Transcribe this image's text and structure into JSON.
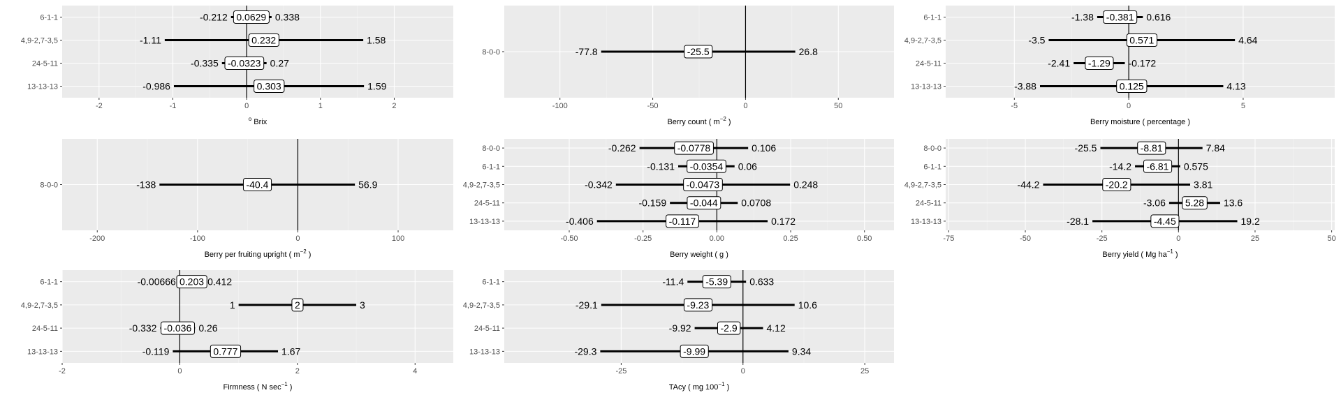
{
  "chart_data": [
    {
      "type": "forest",
      "title": "",
      "xlabel": {
        "pre": "",
        "sup": "o",
        "post": " Brix",
        "sup_first": true
      },
      "xlim": [
        -2.5,
        2.8
      ],
      "xticks": [
        -2,
        -1,
        0,
        1,
        2
      ],
      "xtick_labels": [
        "-2",
        "-1",
        "0",
        "1",
        "2"
      ],
      "categories": [
        "6-1-1",
        "4,9-2,7-3,5",
        "24-5-11",
        "13-13-13"
      ],
      "rows": [
        {
          "category": "6-1-1",
          "low": -0.212,
          "estimate": 0.0629,
          "high": 0.338,
          "low_label": "-0.212",
          "estimate_label": "0.0629",
          "high_label": "0.338"
        },
        {
          "category": "4,9-2,7-3,5",
          "low": -1.11,
          "estimate": 0.232,
          "high": 1.58,
          "low_label": "-1.11",
          "estimate_label": "0.232",
          "high_label": "1.58"
        },
        {
          "category": "24-5-11",
          "low": -0.335,
          "estimate": -0.0323,
          "high": 0.27,
          "low_label": "-0.335",
          "estimate_label": "-0.0323",
          "high_label": "0.27"
        },
        {
          "category": "13-13-13",
          "low": -0.986,
          "estimate": 0.303,
          "high": 1.59,
          "low_label": "-0.986",
          "estimate_label": "0.303",
          "high_label": "1.59"
        }
      ]
    },
    {
      "type": "forest",
      "title": "",
      "xlabel": {
        "pre": "Berry count  ( m",
        "sup": "−2",
        "post": " )"
      },
      "xlim": [
        -130,
        80
      ],
      "xticks": [
        -100,
        -50,
        0,
        50
      ],
      "xtick_labels": [
        "-100",
        "-50",
        "0",
        "50"
      ],
      "categories": [
        "8-0-0"
      ],
      "rows": [
        {
          "category": "8-0-0",
          "low": -77.8,
          "estimate": -25.5,
          "high": 26.8,
          "low_label": "-77.8",
          "estimate_label": "-25.5",
          "high_label": "26.8"
        }
      ]
    },
    {
      "type": "forest",
      "title": "",
      "xlabel": {
        "pre": "Berry moisture  ( percentage  )",
        "sup": "",
        "post": ""
      },
      "xlim": [
        -8,
        9
      ],
      "xticks": [
        -5,
        0,
        5
      ],
      "xtick_labels": [
        "-5",
        "0",
        "5"
      ],
      "categories": [
        "6-1-1",
        "4,9-2,7-3,5",
        "24-5-11",
        "13-13-13"
      ],
      "rows": [
        {
          "category": "6-1-1",
          "low": -1.38,
          "estimate": -0.381,
          "high": 0.616,
          "low_label": "-1.38",
          "estimate_label": "-0.381",
          "high_label": "0.616"
        },
        {
          "category": "4,9-2,7-3,5",
          "low": -3.5,
          "estimate": 0.571,
          "high": 4.64,
          "low_label": "-3.5",
          "estimate_label": "0.571",
          "high_label": "4.64"
        },
        {
          "category": "24-5-11",
          "low": -2.41,
          "estimate": -1.29,
          "high": -0.172,
          "low_label": "-2.41",
          "estimate_label": "-1.29",
          "high_label": "-0.172"
        },
        {
          "category": "13-13-13",
          "low": -3.88,
          "estimate": 0.125,
          "high": 4.13,
          "low_label": "-3.88",
          "estimate_label": "0.125",
          "high_label": "4.13"
        }
      ]
    },
    {
      "type": "forest",
      "title": "",
      "xlabel": {
        "pre": "Berry per fruiting upright  ( m",
        "sup": "−2",
        "post": " )"
      },
      "xlim": [
        -235,
        155
      ],
      "xticks": [
        -200,
        -100,
        0,
        100
      ],
      "xtick_labels": [
        "-200",
        "-100",
        "0",
        "100"
      ],
      "categories": [
        "8-0-0"
      ],
      "rows": [
        {
          "category": "8-0-0",
          "low": -138,
          "estimate": -40.4,
          "high": 56.9,
          "low_label": "-138",
          "estimate_label": "-40.4",
          "high_label": "56.9"
        }
      ]
    },
    {
      "type": "forest",
      "title": "",
      "xlabel": {
        "pre": "Berry weight  ( g  )",
        "sup": "",
        "post": ""
      },
      "xlim": [
        -0.72,
        0.6
      ],
      "xticks": [
        -0.5,
        -0.25,
        0,
        0.25,
        0.5
      ],
      "xtick_labels": [
        "-0.50",
        "-0.25",
        "0.00",
        "0.25",
        "0.50"
      ],
      "categories": [
        "8-0-0",
        "6-1-1",
        "4,9-2,7-3,5",
        "24-5-11",
        "13-13-13"
      ],
      "rows": [
        {
          "category": "8-0-0",
          "low": -0.262,
          "estimate": -0.0778,
          "high": 0.106,
          "low_label": "-0.262",
          "estimate_label": "-0.0778",
          "high_label": "0.106"
        },
        {
          "category": "6-1-1",
          "low": -0.131,
          "estimate": -0.0354,
          "high": 0.06,
          "low_label": "-0.131",
          "estimate_label": "-0.0354",
          "high_label": "0.06"
        },
        {
          "category": "4,9-2,7-3,5",
          "low": -0.342,
          "estimate": -0.0473,
          "high": 0.248,
          "low_label": "-0.342",
          "estimate_label": "-0.0473",
          "high_label": "0.248"
        },
        {
          "category": "24-5-11",
          "low": -0.159,
          "estimate": -0.044,
          "high": 0.0708,
          "low_label": "-0.159",
          "estimate_label": "-0.044",
          "high_label": "0.0708"
        },
        {
          "category": "13-13-13",
          "low": -0.406,
          "estimate": -0.117,
          "high": 0.172,
          "low_label": "-0.406",
          "estimate_label": "-0.117",
          "high_label": "0.172"
        }
      ]
    },
    {
      "type": "forest",
      "title": "",
      "xlabel": {
        "pre": "Berry yield  ( Mg ha",
        "sup": "−1",
        "post": " )"
      },
      "xlim": [
        -76,
        51
      ],
      "xticks": [
        -75,
        -50,
        -25,
        0,
        25,
        50
      ],
      "xtick_labels": [
        "-75",
        "-50",
        "-25",
        "0",
        "25",
        "50"
      ],
      "categories": [
        "8-0-0",
        "6-1-1",
        "4,9-2,7-3,5",
        "24-5-11",
        "13-13-13"
      ],
      "rows": [
        {
          "category": "8-0-0",
          "low": -25.5,
          "estimate": -8.81,
          "high": 7.84,
          "low_label": "-25.5",
          "estimate_label": "-8.81",
          "high_label": "7.84"
        },
        {
          "category": "6-1-1",
          "low": -14.2,
          "estimate": -6.81,
          "high": 0.575,
          "low_label": "-14.2",
          "estimate_label": "-6.81",
          "high_label": "0.575"
        },
        {
          "category": "4,9-2,7-3,5",
          "low": -44.2,
          "estimate": -20.2,
          "high": 3.81,
          "low_label": "-44.2",
          "estimate_label": "-20.2",
          "high_label": "3.81"
        },
        {
          "category": "24-5-11",
          "low": -3.06,
          "estimate": 5.28,
          "high": 13.6,
          "low_label": "-3.06",
          "estimate_label": "5.28",
          "high_label": "13.6"
        },
        {
          "category": "13-13-13",
          "low": -28.1,
          "estimate": -4.45,
          "high": 19.2,
          "low_label": "-28.1",
          "estimate_label": "-4.45",
          "high_label": "19.2"
        }
      ]
    },
    {
      "type": "forest",
      "title": "",
      "xlabel": {
        "pre": "Firmness  ( N sec",
        "sup": "−1",
        "post": " )"
      },
      "xlim": [
        -2,
        4.65
      ],
      "xticks": [
        -2,
        0,
        2,
        4
      ],
      "xtick_labels": [
        "-2",
        "0",
        "2",
        "4"
      ],
      "categories": [
        "6-1-1",
        "4,9-2,7-3,5",
        "24-5-11",
        "13-13-13"
      ],
      "rows": [
        {
          "category": "6-1-1",
          "low": -0.00666,
          "estimate": 0.203,
          "high": 0.412,
          "low_label": "-0.00666",
          "estimate_label": "0.203",
          "high_label": "0.412"
        },
        {
          "category": "4,9-2,7-3,5",
          "low": 1,
          "estimate": 2,
          "high": 3,
          "low_label": "1",
          "estimate_label": "2",
          "high_label": "3"
        },
        {
          "category": "24-5-11",
          "low": -0.332,
          "estimate": -0.036,
          "high": 0.26,
          "low_label": "-0.332",
          "estimate_label": "-0.036",
          "high_label": "0.26"
        },
        {
          "category": "13-13-13",
          "low": -0.119,
          "estimate": 0.777,
          "high": 1.67,
          "low_label": "-0.119",
          "estimate_label": "0.777",
          "high_label": "1.67"
        }
      ]
    },
    {
      "type": "forest",
      "title": "",
      "xlabel": {
        "pre": "TAcy  ( mg 100",
        "sup": "−1",
        "post": " )"
      },
      "xlim": [
        -49,
        31
      ],
      "xticks": [
        -25,
        0,
        25
      ],
      "xtick_labels": [
        "-25",
        "0",
        "25"
      ],
      "categories": [
        "6-1-1",
        "4,9-2,7-3,5",
        "24-5-11",
        "13-13-13"
      ],
      "rows": [
        {
          "category": "6-1-1",
          "low": -11.4,
          "estimate": -5.39,
          "high": 0.633,
          "low_label": "-11.4",
          "estimate_label": "-5.39",
          "high_label": "0.633"
        },
        {
          "category": "4,9-2,7-3,5",
          "low": -29.1,
          "estimate": -9.23,
          "high": 10.6,
          "low_label": "-29.1",
          "estimate_label": "-9.23",
          "high_label": "10.6"
        },
        {
          "category": "24-5-11",
          "low": -9.92,
          "estimate": -2.9,
          "high": 4.12,
          "low_label": "-9.92",
          "estimate_label": "-2.9",
          "high_label": "4.12"
        },
        {
          "category": "13-13-13",
          "low": -29.3,
          "estimate": -9.99,
          "high": 9.34,
          "low_label": "-29.3",
          "estimate_label": "-9.99",
          "high_label": "9.34"
        }
      ]
    }
  ]
}
